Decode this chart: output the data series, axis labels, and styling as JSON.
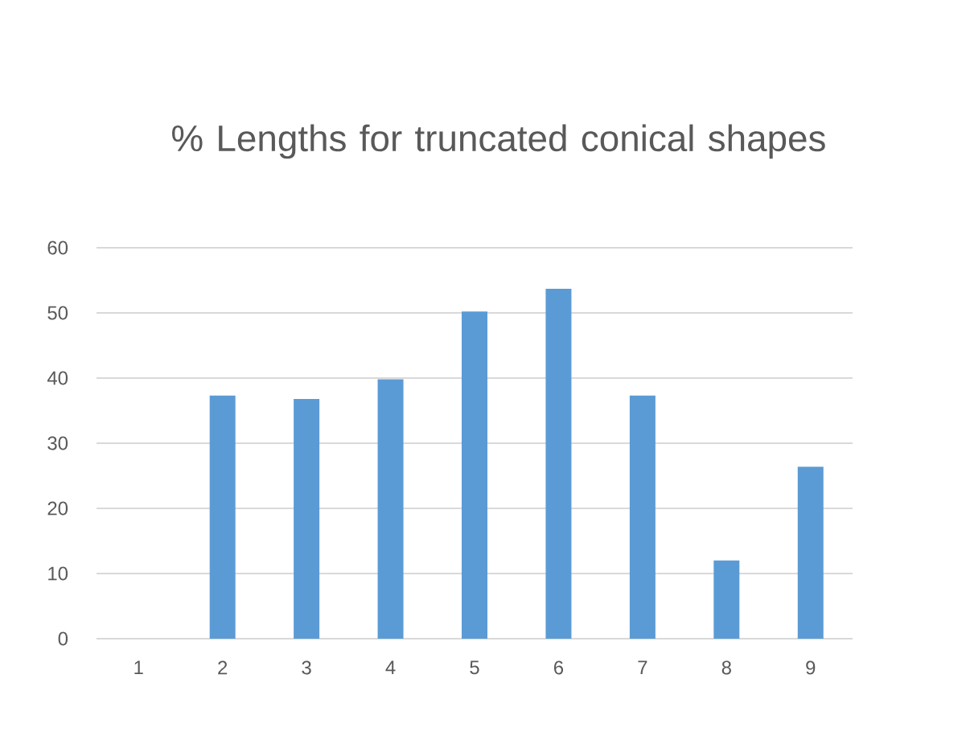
{
  "chart_data": {
    "type": "bar",
    "title": "% Lengths for truncated conical shapes",
    "categories": [
      "1",
      "2",
      "3",
      "4",
      "5",
      "6",
      "7",
      "8",
      "9"
    ],
    "values": [
      0,
      37.3,
      36.8,
      39.8,
      50.2,
      53.7,
      37.3,
      12.0,
      26.4
    ],
    "color": "#5b9bd5",
    "ylim": [
      0,
      60
    ],
    "yticks": [
      0,
      10,
      20,
      30,
      40,
      50,
      60
    ],
    "grid": "y"
  }
}
